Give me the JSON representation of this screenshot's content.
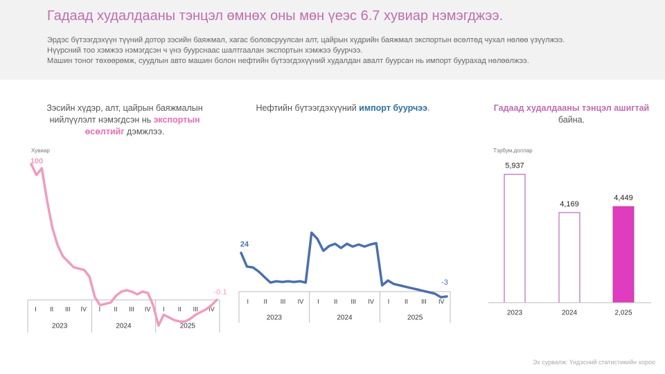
{
  "header": {
    "title": "Гадаад худалдааны тэнцэл өмнөх оны мөн үеэс 6.7 хувиар нэмэгджээ.",
    "lines": [
      "Эрдэс бүтээгдэхүүн түүний дотор зэсийн баяжмал, хагас боловсруулсан алт, цайрын хүдрийн баяжмал экспортын өсөлтөд чухал нөлөө үзүүлжээ.",
      "Нүүрсний тоо хэмжээ нэмэгдсэн ч үнэ буурснаас шалтгаалан экспортын хэмжээ буурчээ.",
      "Машин тоног төхөөрөмж, суудлын авто машин болон нефтийн бүтээгдэхүүний худалдан авалт буурсан нь импорт буурахад нөлөөлжээ."
    ]
  },
  "chart_data": [
    {
      "type": "line",
      "title": [
        {
          "text": "Зэсийн хүдэр, алт, цайрын баяжмалын нийлүүлэлт нэмэгдсэн нь ",
          "bold": false
        },
        {
          "text": "экспортын өсөлтийг",
          "bold": true
        },
        {
          "text": " дэмжлээ.",
          "bold": false
        }
      ],
      "y_label": "Хувиар",
      "color": "#f09bc0",
      "quarters": [
        "I",
        "II",
        "III",
        "IV"
      ],
      "years": [
        "2023",
        "2024",
        "2025"
      ],
      "values": [
        100,
        92,
        97,
        73,
        53,
        40,
        32,
        28,
        24,
        23,
        22,
        17,
        2,
        -4,
        -3,
        -2,
        3,
        6,
        7,
        6,
        4,
        6,
        5,
        -4,
        -19,
        -11,
        -13,
        -15,
        -16,
        -16,
        -14,
        -11,
        -9,
        -7,
        -4,
        -0.1
      ],
      "ylim": [
        -20,
        100
      ]
    },
    {
      "type": "line",
      "title": [
        {
          "text": "Нефтийн бүтээгдэхүүний ",
          "bold": false
        },
        {
          "text": "импорт буурчээ",
          "bold": true
        },
        {
          "text": ".",
          "bold": false
        }
      ],
      "color": "#4a6fae",
      "quarters": [
        "I",
        "II",
        "III",
        "IV"
      ],
      "years": [
        "2023",
        "2024",
        "2025"
      ],
      "values": [
        24,
        15.5,
        15,
        12.4,
        9,
        5.6,
        6.4,
        6,
        6.4,
        6,
        6.4,
        5.6,
        36.5,
        32.6,
        25.3,
        28.3,
        29.6,
        27,
        29.6,
        27.9,
        29.2,
        27.9,
        29.2,
        30,
        3.9,
        6.9,
        4.7,
        3.9,
        3,
        2.1,
        1.3,
        0.4,
        -0.4,
        -1.3,
        -3.5,
        -3
      ],
      "ylim": [
        -5,
        40
      ]
    },
    {
      "type": "bar",
      "title": [
        {
          "text": "Гадаад худалдааны тэнцэл ашигтай",
          "bold": true
        },
        {
          "text": " байна.",
          "bold": false
        }
      ],
      "y_label": "Тэрбум.доллар",
      "categories": [
        "2023",
        "2024",
        "2,025"
      ],
      "values": [
        5937,
        4169,
        4449
      ],
      "value_labels": [
        "5,937",
        "4,169",
        "4,449"
      ],
      "colors": [
        "#ffffff",
        "#ffffff",
        "#e03cbf"
      ],
      "border_color": "#b24aa6",
      "ylim": [
        0,
        7000
      ]
    }
  ],
  "source": "Эх сурвалж: Үндэсний статистикийн хороо"
}
